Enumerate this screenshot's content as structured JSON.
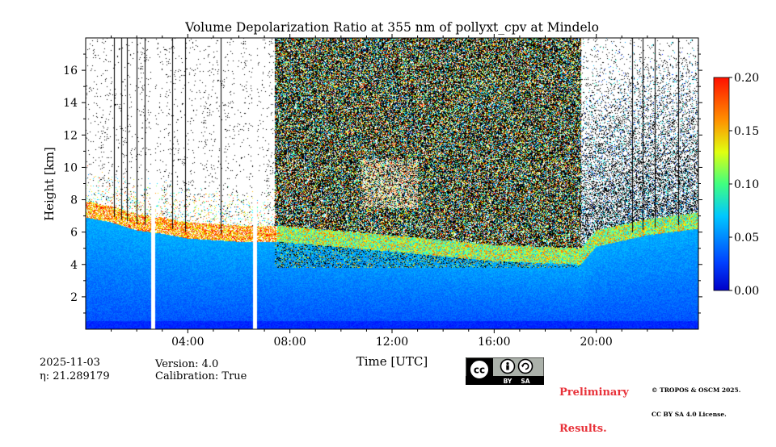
{
  "chart_data": {
    "type": "heatmap",
    "title": "Volume Depolarization Ratio at 355 nm of pollyxt_cpv at Mindelo",
    "xlabel": "Time [UTC]",
    "ylabel": "Height [km]",
    "xlim": [
      0,
      24
    ],
    "ylim": [
      0,
      18
    ],
    "x_ticks": [
      {
        "value": 4,
        "label": "04:00"
      },
      {
        "value": 8,
        "label": "08:00"
      },
      {
        "value": 12,
        "label": "12:00"
      },
      {
        "value": 16,
        "label": "16:00"
      },
      {
        "value": 20,
        "label": "20:00"
      }
    ],
    "y_ticks": [
      {
        "value": 2,
        "label": "2"
      },
      {
        "value": 4,
        "label": "4"
      },
      {
        "value": 6,
        "label": "6"
      },
      {
        "value": 8,
        "label": "8"
      },
      {
        "value": 10,
        "label": "10"
      },
      {
        "value": 12,
        "label": "12"
      },
      {
        "value": 14,
        "label": "14"
      },
      {
        "value": 16,
        "label": "16"
      }
    ],
    "colorbar": {
      "colormap": "jet",
      "range": [
        0.0,
        0.2
      ],
      "ticks": [
        {
          "value": 0.0,
          "label": "0.00"
        },
        {
          "value": 0.05,
          "label": "0.05"
        },
        {
          "value": 0.1,
          "label": "0.10"
        },
        {
          "value": 0.15,
          "label": "0.15"
        },
        {
          "value": 0.2,
          "label": "0.20"
        }
      ]
    },
    "no_data_periods_utc": [
      [
        2.55,
        2.72
      ],
      [
        6.55,
        6.7
      ]
    ],
    "dense_noise_period_utc": [
      7.4,
      19.4
    ],
    "aerosol_layer_top_km": [
      [
        0,
        7.3
      ],
      [
        1,
        7.0
      ],
      [
        2,
        6.5
      ],
      [
        3,
        6.3
      ],
      [
        4,
        6.0
      ],
      [
        5,
        5.9
      ],
      [
        6,
        5.8
      ],
      [
        7.5,
        5.8
      ],
      [
        12,
        5.2
      ],
      [
        16,
        4.6
      ],
      [
        19.4,
        4.4
      ],
      [
        20,
        5.5
      ],
      [
        22,
        6.2
      ],
      [
        24,
        6.6
      ]
    ],
    "cirrus_features": [
      {
        "t_range": [
          10.8,
          13.0
        ],
        "h_range": [
          7.5,
          10.5
        ]
      },
      {
        "t_range": [
          2.6,
          4.2
        ],
        "h_range": [
          8.5,
          9.8
        ]
      }
    ]
  },
  "footer": {
    "date": "2025-11-03",
    "eta": "η: 21.289179",
    "version": "Version: 4.0",
    "calibration": "Calibration: True",
    "preliminary_line1": "Preliminary",
    "preliminary_line2": "Results.",
    "copyright_line1": "© TROPOS & OSCM 2025.",
    "copyright_line2": "CC BY SA 4.0 License."
  },
  "license_badge": {
    "cc": "cc",
    "by": "BY",
    "sa": "SA"
  }
}
